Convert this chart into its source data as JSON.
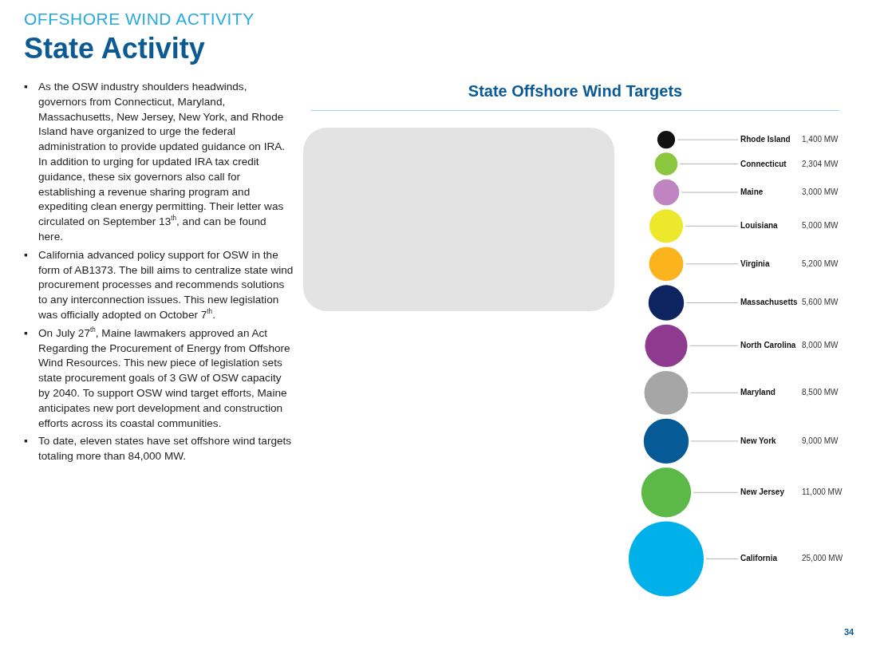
{
  "chart_data": {
    "type": "other",
    "title": "State Offshore Wind Targets",
    "categories": [
      "Rhode Island",
      "Connecticut",
      "Maine",
      "Louisiana",
      "Virginia",
      "Massachusetts",
      "North Carolina",
      "Maryland",
      "New York",
      "New Jersey",
      "California"
    ],
    "values": [
      1400,
      2304,
      3000,
      5000,
      5200,
      5600,
      8000,
      8500,
      9000,
      11000,
      25000
    ],
    "colors": [
      "#111111",
      "#8cc63f",
      "#c084c0",
      "#eee82c",
      "#fbb41e",
      "#0d2461",
      "#8e3a8e",
      "#a6a6a6",
      "#065a96",
      "#5cb847",
      "#00b0e8"
    ],
    "value_labels": [
      "1,400 MW",
      "2,304 MW",
      "3,000 MW",
      "5,000 MW",
      "5,200 MW",
      "5,600 MW",
      "8,000 MW",
      "8,500 MW",
      "9,000 MW",
      "11,000 MW",
      "25,000 MW"
    ],
    "annotations": [
      "OFFSHORE WIND ACTIVITY",
      "State Activity",
      "▪ As the OSW industry shoulders headwinds, governors from Connecticut, Maryland, Massachusetts, New Jersey, New York, and Rhode Island have organized to urge the federal administration to provide updated guidance on IRA. In addition to urging for updated IRA tax credit guidance, these six governors also call for establishing a revenue sharing program and expediting clean energy permitting. Their letter was circulated on September 13$^{th}$, and can be found here.",
      "▪ California advanced policy support for OSW in the form of AB1373. The bill aims to centralize state wind procurement processes and recommends solutions to any interconnection issues. This new legislation was officially adopted on October 7$^{th}$.",
      "▪ On July 27$^{th}$, Maine lawmakers approved an Act Regarding the Procurement of Energy from Offshore Wind Resources. This new piece of legislation sets state procurement goals of 3 GW of OSW capacity by 2040. To support OSW wind target efforts, Maine anticipates new port development and construction efforts across its coastal communities.",
      "▪ To date, eleven states have set offshore wind targets totaling more than 84,000 MW.",
      "34"
    ]
  }
}
